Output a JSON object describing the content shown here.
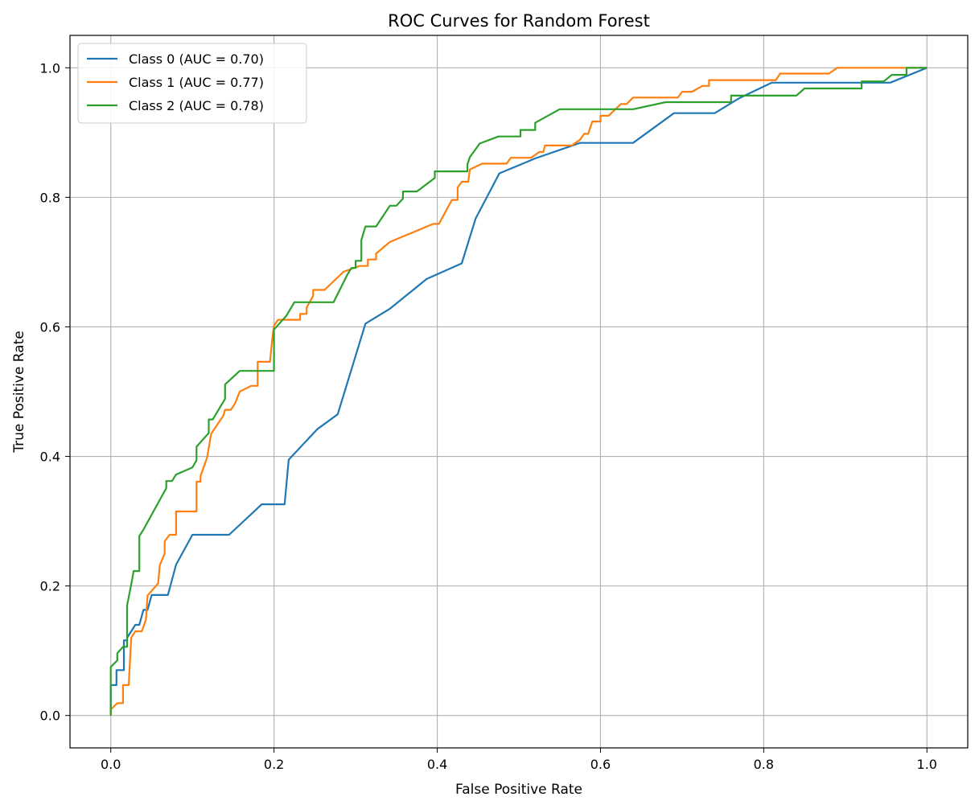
{
  "chart_data": {
    "type": "line",
    "title": "ROC Curves for Random Forest",
    "xlabel": "False Positive Rate",
    "ylabel": "True Positive Rate",
    "xlim": [
      -0.05,
      1.05
    ],
    "ylim": [
      -0.05,
      1.05
    ],
    "xticks": [
      "0.0",
      "0.2",
      "0.4",
      "0.6",
      "0.8",
      "1.0"
    ],
    "yticks": [
      "0.0",
      "0.2",
      "0.4",
      "0.6",
      "0.8",
      "1.0"
    ],
    "grid": true,
    "legend_position": "top-left",
    "series": [
      {
        "name": "Class 0 (AUC = 0.70)",
        "color": "#1f77b4",
        "points": [
          [
            0,
            0
          ],
          [
            0,
            0.047
          ],
          [
            0.007,
            0.047
          ],
          [
            0.007,
            0.07
          ],
          [
            0.016,
            0.07
          ],
          [
            0.016,
            0.116
          ],
          [
            0.02,
            0.116
          ],
          [
            0.02,
            0.12
          ],
          [
            0.03,
            0.14
          ],
          [
            0.035,
            0.14
          ],
          [
            0.04,
            0.163
          ],
          [
            0.045,
            0.163
          ],
          [
            0.05,
            0.186
          ],
          [
            0.07,
            0.186
          ],
          [
            0.08,
            0.233
          ],
          [
            0.1,
            0.279
          ],
          [
            0.145,
            0.279
          ],
          [
            0.185,
            0.326
          ],
          [
            0.213,
            0.326
          ],
          [
            0.218,
            0.395
          ],
          [
            0.253,
            0.442
          ],
          [
            0.278,
            0.465
          ],
          [
            0.312,
            0.605
          ],
          [
            0.342,
            0.628
          ],
          [
            0.387,
            0.674
          ],
          [
            0.43,
            0.698
          ],
          [
            0.447,
            0.767
          ],
          [
            0.476,
            0.837
          ],
          [
            0.52,
            0.86
          ],
          [
            0.575,
            0.884
          ],
          [
            0.64,
            0.884
          ],
          [
            0.69,
            0.93
          ],
          [
            0.74,
            0.93
          ],
          [
            0.77,
            0.953
          ],
          [
            0.81,
            0.977
          ],
          [
            0.955,
            0.977
          ],
          [
            1.0,
            1.0
          ]
        ]
      },
      {
        "name": "Class 1 (AUC = 0.77)",
        "color": "#ff7f0e",
        "points": [
          [
            0,
            0
          ],
          [
            0,
            0.009
          ],
          [
            0.008,
            0.019
          ],
          [
            0.015,
            0.019
          ],
          [
            0.015,
            0.047
          ],
          [
            0.022,
            0.047
          ],
          [
            0.025,
            0.12
          ],
          [
            0.03,
            0.13
          ],
          [
            0.038,
            0.13
          ],
          [
            0.043,
            0.148
          ],
          [
            0.045,
            0.185
          ],
          [
            0.058,
            0.204
          ],
          [
            0.06,
            0.232
          ],
          [
            0.066,
            0.25
          ],
          [
            0.066,
            0.269
          ],
          [
            0.072,
            0.279
          ],
          [
            0.08,
            0.279
          ],
          [
            0.08,
            0.315
          ],
          [
            0.105,
            0.315
          ],
          [
            0.105,
            0.361
          ],
          [
            0.11,
            0.361
          ],
          [
            0.11,
            0.37
          ],
          [
            0.118,
            0.398
          ],
          [
            0.123,
            0.435
          ],
          [
            0.138,
            0.463
          ],
          [
            0.14,
            0.472
          ],
          [
            0.147,
            0.472
          ],
          [
            0.152,
            0.481
          ],
          [
            0.158,
            0.5
          ],
          [
            0.172,
            0.509
          ],
          [
            0.18,
            0.509
          ],
          [
            0.18,
            0.546
          ],
          [
            0.195,
            0.546
          ],
          [
            0.198,
            0.583
          ],
          [
            0.2,
            0.602
          ],
          [
            0.205,
            0.611
          ],
          [
            0.232,
            0.611
          ],
          [
            0.232,
            0.62
          ],
          [
            0.24,
            0.62
          ],
          [
            0.24,
            0.63
          ],
          [
            0.248,
            0.648
          ],
          [
            0.248,
            0.657
          ],
          [
            0.262,
            0.657
          ],
          [
            0.285,
            0.685
          ],
          [
            0.305,
            0.694
          ],
          [
            0.315,
            0.694
          ],
          [
            0.315,
            0.704
          ],
          [
            0.325,
            0.704
          ],
          [
            0.325,
            0.713
          ],
          [
            0.342,
            0.731
          ],
          [
            0.395,
            0.759
          ],
          [
            0.402,
            0.759
          ],
          [
            0.418,
            0.796
          ],
          [
            0.425,
            0.796
          ],
          [
            0.425,
            0.815
          ],
          [
            0.43,
            0.824
          ],
          [
            0.438,
            0.824
          ],
          [
            0.44,
            0.843
          ],
          [
            0.455,
            0.852
          ],
          [
            0.485,
            0.852
          ],
          [
            0.49,
            0.861
          ],
          [
            0.515,
            0.861
          ],
          [
            0.525,
            0.87
          ],
          [
            0.53,
            0.87
          ],
          [
            0.532,
            0.88
          ],
          [
            0.565,
            0.88
          ],
          [
            0.575,
            0.889
          ],
          [
            0.58,
            0.898
          ],
          [
            0.585,
            0.898
          ],
          [
            0.59,
            0.917
          ],
          [
            0.6,
            0.917
          ],
          [
            0.6,
            0.926
          ],
          [
            0.61,
            0.926
          ],
          [
            0.625,
            0.944
          ],
          [
            0.632,
            0.944
          ],
          [
            0.64,
            0.954
          ],
          [
            0.695,
            0.954
          ],
          [
            0.7,
            0.963
          ],
          [
            0.712,
            0.963
          ],
          [
            0.725,
            0.972
          ],
          [
            0.733,
            0.972
          ],
          [
            0.733,
            0.981
          ],
          [
            0.815,
            0.981
          ],
          [
            0.82,
            0.991
          ],
          [
            0.88,
            0.991
          ],
          [
            0.89,
            1.0
          ],
          [
            1.0,
            1.0
          ]
        ]
      },
      {
        "name": "Class 2 (AUC = 0.78)",
        "color": "#2ca02c",
        "points": [
          [
            0,
            0
          ],
          [
            0,
            0.075
          ],
          [
            0.008,
            0.085
          ],
          [
            0.008,
            0.096
          ],
          [
            0.015,
            0.106
          ],
          [
            0.02,
            0.106
          ],
          [
            0.02,
            0.17
          ],
          [
            0.025,
            0.202
          ],
          [
            0.028,
            0.223
          ],
          [
            0.035,
            0.223
          ],
          [
            0.035,
            0.277
          ],
          [
            0.04,
            0.287
          ],
          [
            0.068,
            0.351
          ],
          [
            0.068,
            0.362
          ],
          [
            0.075,
            0.362
          ],
          [
            0.08,
            0.372
          ],
          [
            0.1,
            0.383
          ],
          [
            0.105,
            0.394
          ],
          [
            0.105,
            0.415
          ],
          [
            0.12,
            0.436
          ],
          [
            0.12,
            0.457
          ],
          [
            0.125,
            0.457
          ],
          [
            0.14,
            0.489
          ],
          [
            0.14,
            0.511
          ],
          [
            0.158,
            0.532
          ],
          [
            0.2,
            0.532
          ],
          [
            0.2,
            0.596
          ],
          [
            0.215,
            0.617
          ],
          [
            0.225,
            0.638
          ],
          [
            0.273,
            0.638
          ],
          [
            0.29,
            0.681
          ],
          [
            0.295,
            0.691
          ],
          [
            0.3,
            0.691
          ],
          [
            0.3,
            0.702
          ],
          [
            0.307,
            0.702
          ],
          [
            0.307,
            0.734
          ],
          [
            0.312,
            0.755
          ],
          [
            0.325,
            0.755
          ],
          [
            0.342,
            0.787
          ],
          [
            0.35,
            0.787
          ],
          [
            0.358,
            0.798
          ],
          [
            0.358,
            0.809
          ],
          [
            0.375,
            0.809
          ],
          [
            0.397,
            0.83
          ],
          [
            0.397,
            0.84
          ],
          [
            0.437,
            0.84
          ],
          [
            0.437,
            0.851
          ],
          [
            0.44,
            0.862
          ],
          [
            0.452,
            0.883
          ],
          [
            0.475,
            0.894
          ],
          [
            0.502,
            0.894
          ],
          [
            0.502,
            0.904
          ],
          [
            0.52,
            0.904
          ],
          [
            0.52,
            0.915
          ],
          [
            0.55,
            0.936
          ],
          [
            0.64,
            0.936
          ],
          [
            0.68,
            0.947
          ],
          [
            0.76,
            0.947
          ],
          [
            0.76,
            0.957
          ],
          [
            0.84,
            0.957
          ],
          [
            0.85,
            0.968
          ],
          [
            0.92,
            0.968
          ],
          [
            0.92,
            0.979
          ],
          [
            0.947,
            0.979
          ],
          [
            0.957,
            0.989
          ],
          [
            0.975,
            0.989
          ],
          [
            0.975,
            1.0
          ],
          [
            1.0,
            1.0
          ]
        ]
      }
    ]
  }
}
